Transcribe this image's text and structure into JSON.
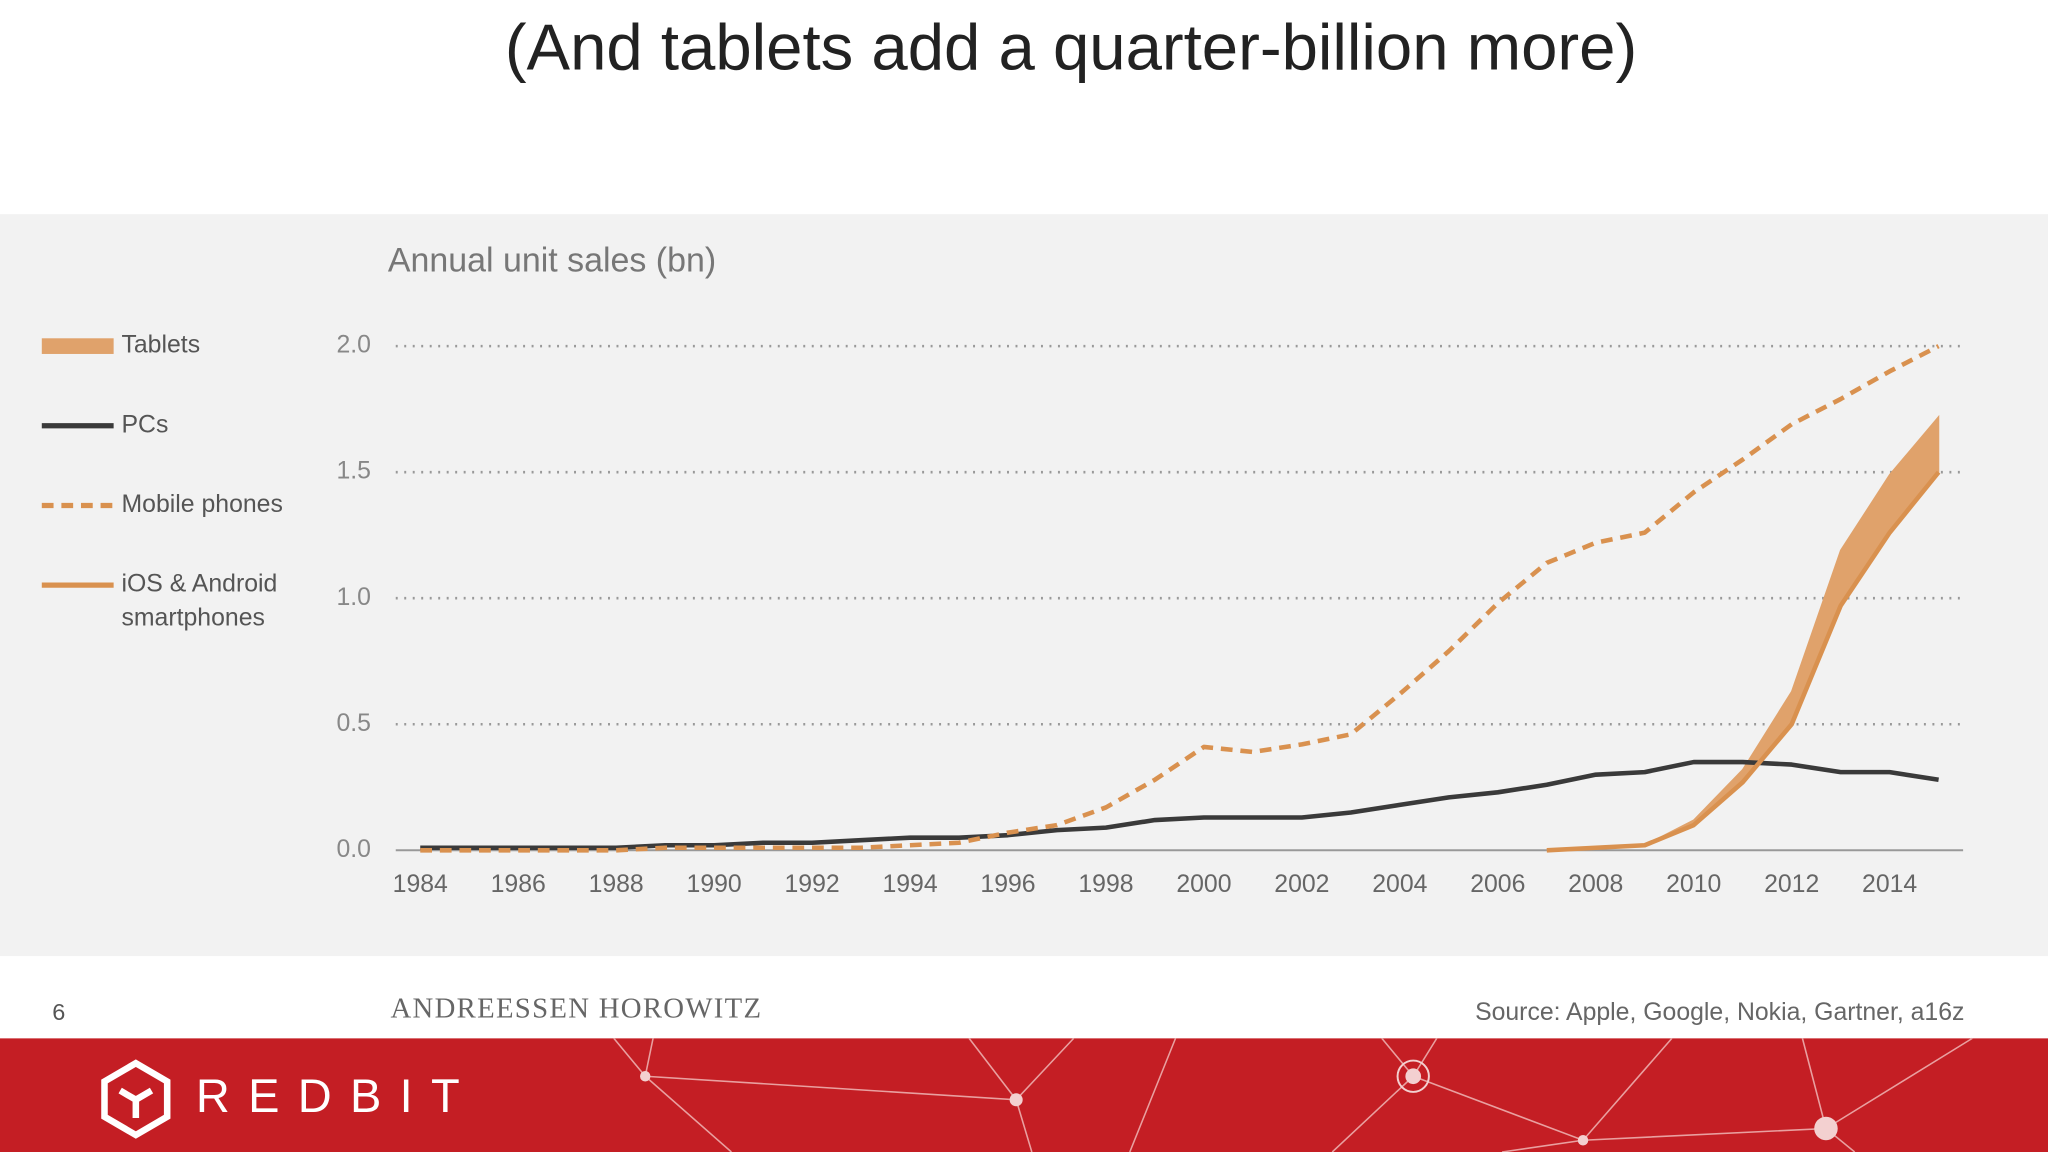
{
  "heading": "(And tablets add a quarter-billion more)",
  "chart_data": {
    "type": "line",
    "title": "Annual unit sales (bn)",
    "x": [
      1984,
      1985,
      1986,
      1987,
      1988,
      1989,
      1990,
      1991,
      1992,
      1993,
      1994,
      1995,
      1996,
      1997,
      1998,
      1999,
      2000,
      2001,
      2002,
      2003,
      2004,
      2005,
      2006,
      2007,
      2008,
      2009,
      2010,
      2011,
      2012,
      2013,
      2014,
      2015
    ],
    "xlim": [
      1983.5,
      2015.5
    ],
    "xticks": [
      1984,
      1986,
      1988,
      1990,
      1992,
      1994,
      1996,
      1998,
      2000,
      2002,
      2004,
      2006,
      2008,
      2010,
      2012,
      2014
    ],
    "ylim": [
      0,
      2
    ],
    "yticks": [
      {
        "value": 0,
        "label": "0.0"
      },
      {
        "value": 0.5,
        "label": "0.5"
      },
      {
        "value": 1,
        "label": "1.0"
      },
      {
        "value": 1.5,
        "label": "1.5"
      },
      {
        "value": 2,
        "label": "2.0"
      }
    ],
    "grid": true,
    "series": [
      {
        "name": "Tablets",
        "color": "#e0a26b",
        "style": "band",
        "stacked_on": 3,
        "values": [
          null,
          null,
          null,
          null,
          null,
          null,
          null,
          null,
          null,
          null,
          null,
          null,
          null,
          null,
          null,
          null,
          null,
          null,
          null,
          null,
          null,
          null,
          null,
          0,
          0,
          0,
          0.02,
          0.05,
          0.13,
          0.22,
          0.23,
          0.22
        ]
      },
      {
        "name": "PCs",
        "color": "#3a3a3a",
        "style": "solid",
        "values": [
          0.01,
          0.01,
          0.01,
          0.01,
          0.01,
          0.02,
          0.02,
          0.03,
          0.03,
          0.04,
          0.05,
          0.05,
          0.06,
          0.08,
          0.09,
          0.12,
          0.13,
          0.13,
          0.13,
          0.15,
          0.18,
          0.21,
          0.23,
          0.26,
          0.3,
          0.31,
          0.35,
          0.35,
          0.34,
          0.31,
          0.31,
          0.28
        ]
      },
      {
        "name": "Mobile phones",
        "color": "#d9914f",
        "style": "dashed",
        "values": [
          0,
          0,
          0,
          0,
          0,
          0.01,
          0.01,
          0.01,
          0.01,
          0.01,
          0.02,
          0.03,
          0.07,
          0.1,
          0.17,
          0.28,
          0.41,
          0.39,
          0.42,
          0.46,
          0.62,
          0.79,
          0.98,
          1.14,
          1.22,
          1.26,
          1.42,
          1.55,
          1.69,
          1.79,
          1.9,
          2.0
        ]
      },
      {
        "name": "iOS & Android smartphones",
        "color": "#d9914f",
        "style": "solid",
        "values": [
          null,
          null,
          null,
          null,
          null,
          null,
          null,
          null,
          null,
          null,
          null,
          null,
          null,
          null,
          null,
          null,
          null,
          null,
          null,
          null,
          null,
          null,
          null,
          0,
          0.01,
          0.02,
          0.1,
          0.27,
          0.5,
          0.97,
          1.26,
          1.5
        ]
      }
    ]
  },
  "footer": {
    "page": "6",
    "brand": "ANDREESSEN HOROWITZ",
    "source": "Source: Apple, Google, Nokia, Gartner, a16z",
    "logo": "REDBIT"
  }
}
